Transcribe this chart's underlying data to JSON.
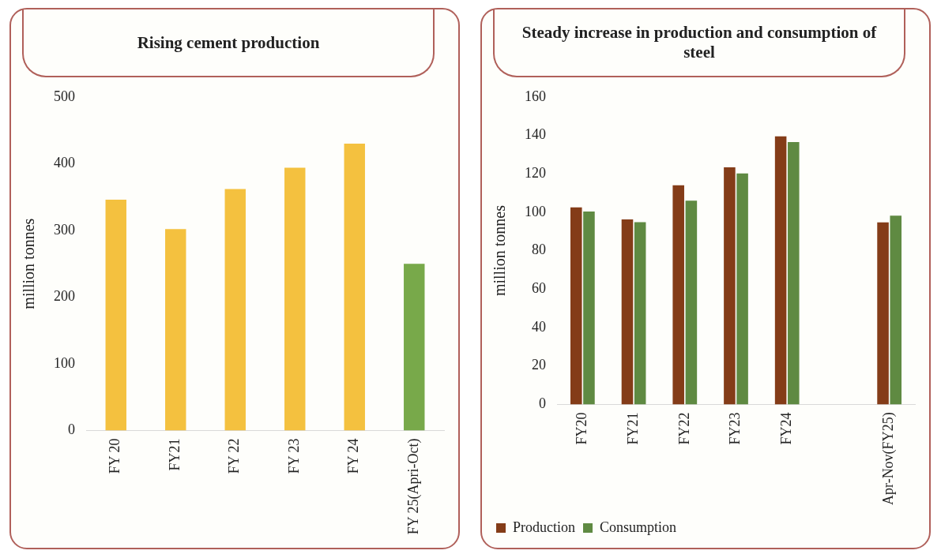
{
  "chart_data": [
    {
      "type": "bar",
      "title": "Rising cement production",
      "ylabel": "million tonnes",
      "categories": [
        "FY 20",
        "FY21",
        "FY 22",
        "FY 23",
        "FY 24",
        "FY 25(Apri-Oct)"
      ],
      "values": [
        346,
        302,
        362,
        394,
        430,
        250
      ],
      "colors": [
        "#f4c13f",
        "#f4c13f",
        "#f4c13f",
        "#f4c13f",
        "#f4c13f",
        "#78a94a"
      ],
      "ylim": [
        0,
        500
      ],
      "yticks": [
        0,
        100,
        200,
        300,
        400,
        500
      ],
      "grid": false,
      "legend": false
    },
    {
      "type": "bar",
      "title": "Steady increase in production and consumption of steel",
      "ylabel": "million tonnes",
      "categories": [
        "FY20",
        "FY21",
        "FY22",
        "FY23",
        "FY24",
        null,
        "Apr-Nov(FY25)"
      ],
      "series": [
        {
          "name": "Production",
          "color": "#843c18",
          "values": [
            102.5,
            96.3,
            114,
            123.4,
            139.5,
            null,
            94.7
          ]
        },
        {
          "name": "Consumption",
          "color": "#5f8a42",
          "values": [
            100.4,
            94.8,
            106,
            120.2,
            136.5,
            null,
            98.2
          ]
        }
      ],
      "ylim": [
        0,
        160
      ],
      "yticks": [
        0,
        20,
        40,
        60,
        80,
        100,
        120,
        140,
        160
      ],
      "grid": false,
      "legend": "bottom left"
    }
  ]
}
